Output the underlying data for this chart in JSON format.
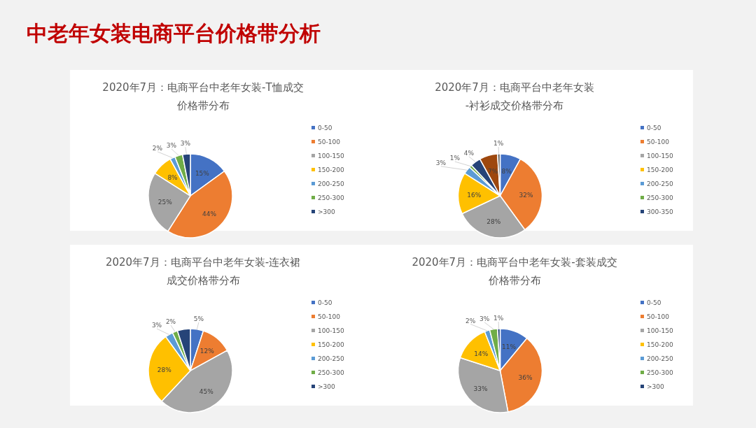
{
  "chart_data": [
    {
      "type": "pie",
      "title": "2020年7月：电商平台中老年女装-T恤成交价格带分布",
      "annotations": [
        "中老年女装电商平台价格带分析"
      ],
      "categories": [
        "0-50",
        "50-100",
        "100-150",
        "150-200",
        "200-250",
        "250-300",
        ">300"
      ],
      "values": [
        15,
        44,
        25,
        8,
        2,
        3,
        3
      ],
      "colors": [
        "#4472c4",
        "#ed7d31",
        "#a5a5a5",
        "#ffc000",
        "#5b9bd5",
        "#70ad47",
        "#264478"
      ],
      "value_labels": [
        "15%",
        "44%",
        "25%",
        "8%",
        "2%",
        "3%",
        "3%"
      ],
      "legend": "right"
    },
    {
      "type": "pie",
      "title": "2020年7月：电商平台中老年女装-衬衫成交价格带分布",
      "categories": [
        "0-50",
        "50-100",
        "100-150",
        "150-200",
        "200-250",
        "250-300",
        "300-350",
        null,
        null
      ],
      "values": [
        8,
        32,
        28,
        16,
        3,
        1,
        4,
        7,
        1
      ],
      "colors": [
        "#4472c4",
        "#ed7d31",
        "#a5a5a5",
        "#ffc000",
        "#5b9bd5",
        "#70ad47",
        "#264478",
        "#9e480e",
        "#636363"
      ],
      "value_labels": [
        "8%",
        "32%",
        "28%",
        "16%",
        "3%",
        "1%",
        "4%",
        "7%",
        "1%"
      ],
      "legend": "right"
    },
    {
      "type": "pie",
      "title": "2020年7月：电商平台中老年女装-连衣裙成交价格带分布",
      "categories": [
        "0-50",
        "50-100",
        "100-150",
        "150-200",
        "200-250",
        "250-300",
        ">300"
      ],
      "values": [
        5,
        12,
        45,
        28,
        3,
        2,
        5
      ],
      "colors": [
        "#4472c4",
        "#ed7d31",
        "#a5a5a5",
        "#ffc000",
        "#5b9bd5",
        "#70ad47",
        "#264478"
      ],
      "value_labels": [
        "5%",
        "12%",
        "45%",
        "28%",
        "3%",
        "2%",
        null
      ],
      "legend": "right"
    },
    {
      "type": "pie",
      "title": "2020年7月：电商平台中老年女装-套装成交价格带分布",
      "categories": [
        "0-50",
        "50-100",
        "100-150",
        "150-200",
        "200-250",
        "250-300",
        ">300"
      ],
      "values": [
        11,
        36,
        33,
        14,
        2,
        3,
        1
      ],
      "colors": [
        "#4472c4",
        "#ed7d31",
        "#a5a5a5",
        "#ffc000",
        "#5b9bd5",
        "#70ad47",
        "#264478"
      ],
      "value_labels": [
        "11%",
        "36%",
        "33%",
        "14%",
        "2%",
        "3%",
        "1%"
      ],
      "legend": "right"
    }
  ]
}
